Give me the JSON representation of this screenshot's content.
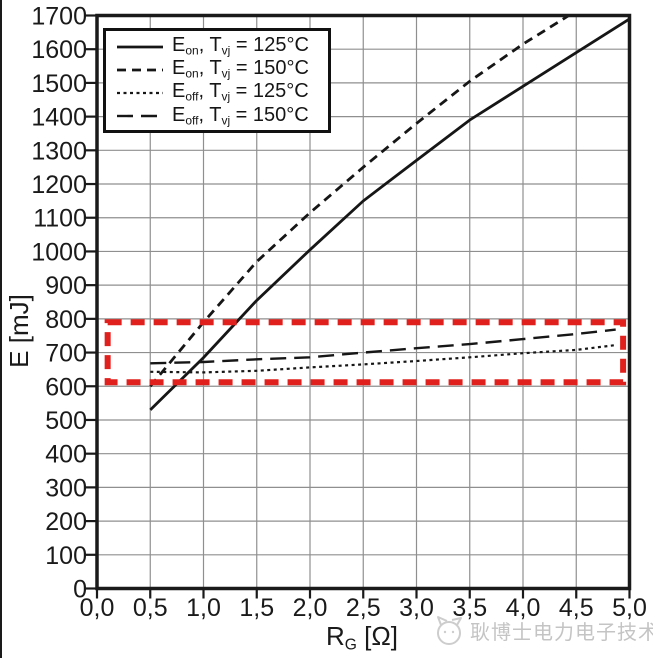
{
  "page": {
    "background": "#ffffff"
  },
  "watermark": {
    "text": "耿博士电力电子技术"
  },
  "chart_data": {
    "type": "line",
    "title": "",
    "xlabel": {
      "base": "R",
      "base_sub": "G",
      "tail": " [Ω]"
    },
    "ylabel": "E [mJ]",
    "xlim": [
      0,
      5
    ],
    "ylim": [
      0,
      1700
    ],
    "grid": true,
    "grid_color": "#8f8f8f",
    "axis_color": "#1a1a1a",
    "legend_position": "top-left",
    "x_ticks": {
      "values": [
        0,
        0.5,
        1,
        1.5,
        2,
        2.5,
        3,
        3.5,
        4,
        4.5,
        5
      ],
      "labels": [
        "0,0",
        "0,5",
        "1,0",
        "1,5",
        "2,0",
        "2,5",
        "3,0",
        "3,5",
        "4,0",
        "4,5",
        "5,0"
      ]
    },
    "y_ticks": {
      "values": [
        0,
        100,
        200,
        300,
        400,
        500,
        600,
        700,
        800,
        900,
        1000,
        1100,
        1200,
        1300,
        1400,
        1500,
        1600,
        1700
      ],
      "labels": [
        "0",
        "100",
        "200",
        "300",
        "400",
        "500",
        "600",
        "700",
        "800",
        "900",
        "1000",
        "1100",
        "1200",
        "1300",
        "1400",
        "1500",
        "1600",
        "1700"
      ]
    },
    "series": [
      {
        "id": "eon-125",
        "name": "Eon, Tvj = 125°C",
        "label_parts": {
          "sym": "E",
          "sym_sub": "on",
          "mid": ", T",
          "mid_sub": "vj",
          "tail": " = 125°C"
        },
        "color": "#161616",
        "dash": "",
        "width": 2.8,
        "x": [
          0.5,
          1.0,
          1.5,
          2.0,
          2.5,
          3.0,
          3.5,
          4.0,
          4.5,
          5.0
        ],
        "y": [
          530,
          685,
          855,
          1005,
          1150,
          1270,
          1390,
          1490,
          1590,
          1690
        ]
      },
      {
        "id": "eon-150",
        "name": "Eon, Tvj = 150°C",
        "label_parts": {
          "sym": "E",
          "sym_sub": "on",
          "mid": ", T",
          "mid_sub": "vj",
          "tail": " = 150°C"
        },
        "color": "#161616",
        "dash": "9 6",
        "width": 2.8,
        "x": [
          0.5,
          1.0,
          1.5,
          2.0,
          2.5,
          3.0,
          3.5,
          4.0,
          4.43
        ],
        "y": [
          600,
          790,
          970,
          1115,
          1250,
          1380,
          1505,
          1615,
          1700
        ]
      },
      {
        "id": "eoff-125",
        "name": "Eoff, Tvj = 125°C",
        "label_parts": {
          "sym": "E",
          "sym_sub": "off",
          "mid": ", T",
          "mid_sub": "vj",
          "tail": " = 125°C"
        },
        "color": "#161616",
        "dash": "3 3.5",
        "width": 2.2,
        "x": [
          0.5,
          1.0,
          1.5,
          2.0,
          2.5,
          3.0,
          3.5,
          4.0,
          4.5,
          4.87
        ],
        "y": [
          643,
          641,
          646,
          656,
          665,
          675,
          686,
          698,
          708,
          722
        ]
      },
      {
        "id": "eoff-150",
        "name": "Eoff, Tvj = 150°C",
        "label_parts": {
          "sym": "E",
          "sym_sub": "off",
          "mid": ", T",
          "mid_sub": "vj",
          "tail": " = 150°C"
        },
        "color": "#161616",
        "dash": "16 8",
        "width": 2.4,
        "x": [
          0.5,
          1.0,
          1.5,
          2.0,
          2.5,
          3.0,
          3.5,
          4.0,
          4.5,
          4.87
        ],
        "y": [
          668,
          672,
          680,
          686,
          700,
          713,
          725,
          740,
          755,
          768
        ]
      }
    ],
    "annotation_box": {
      "note": "red dashed highlight over turn-off energy curves",
      "x": [
        0.1,
        4.94
      ],
      "y": [
        612,
        790
      ],
      "color": "#e0201c",
      "dash": "14 9",
      "width": 6
    }
  }
}
